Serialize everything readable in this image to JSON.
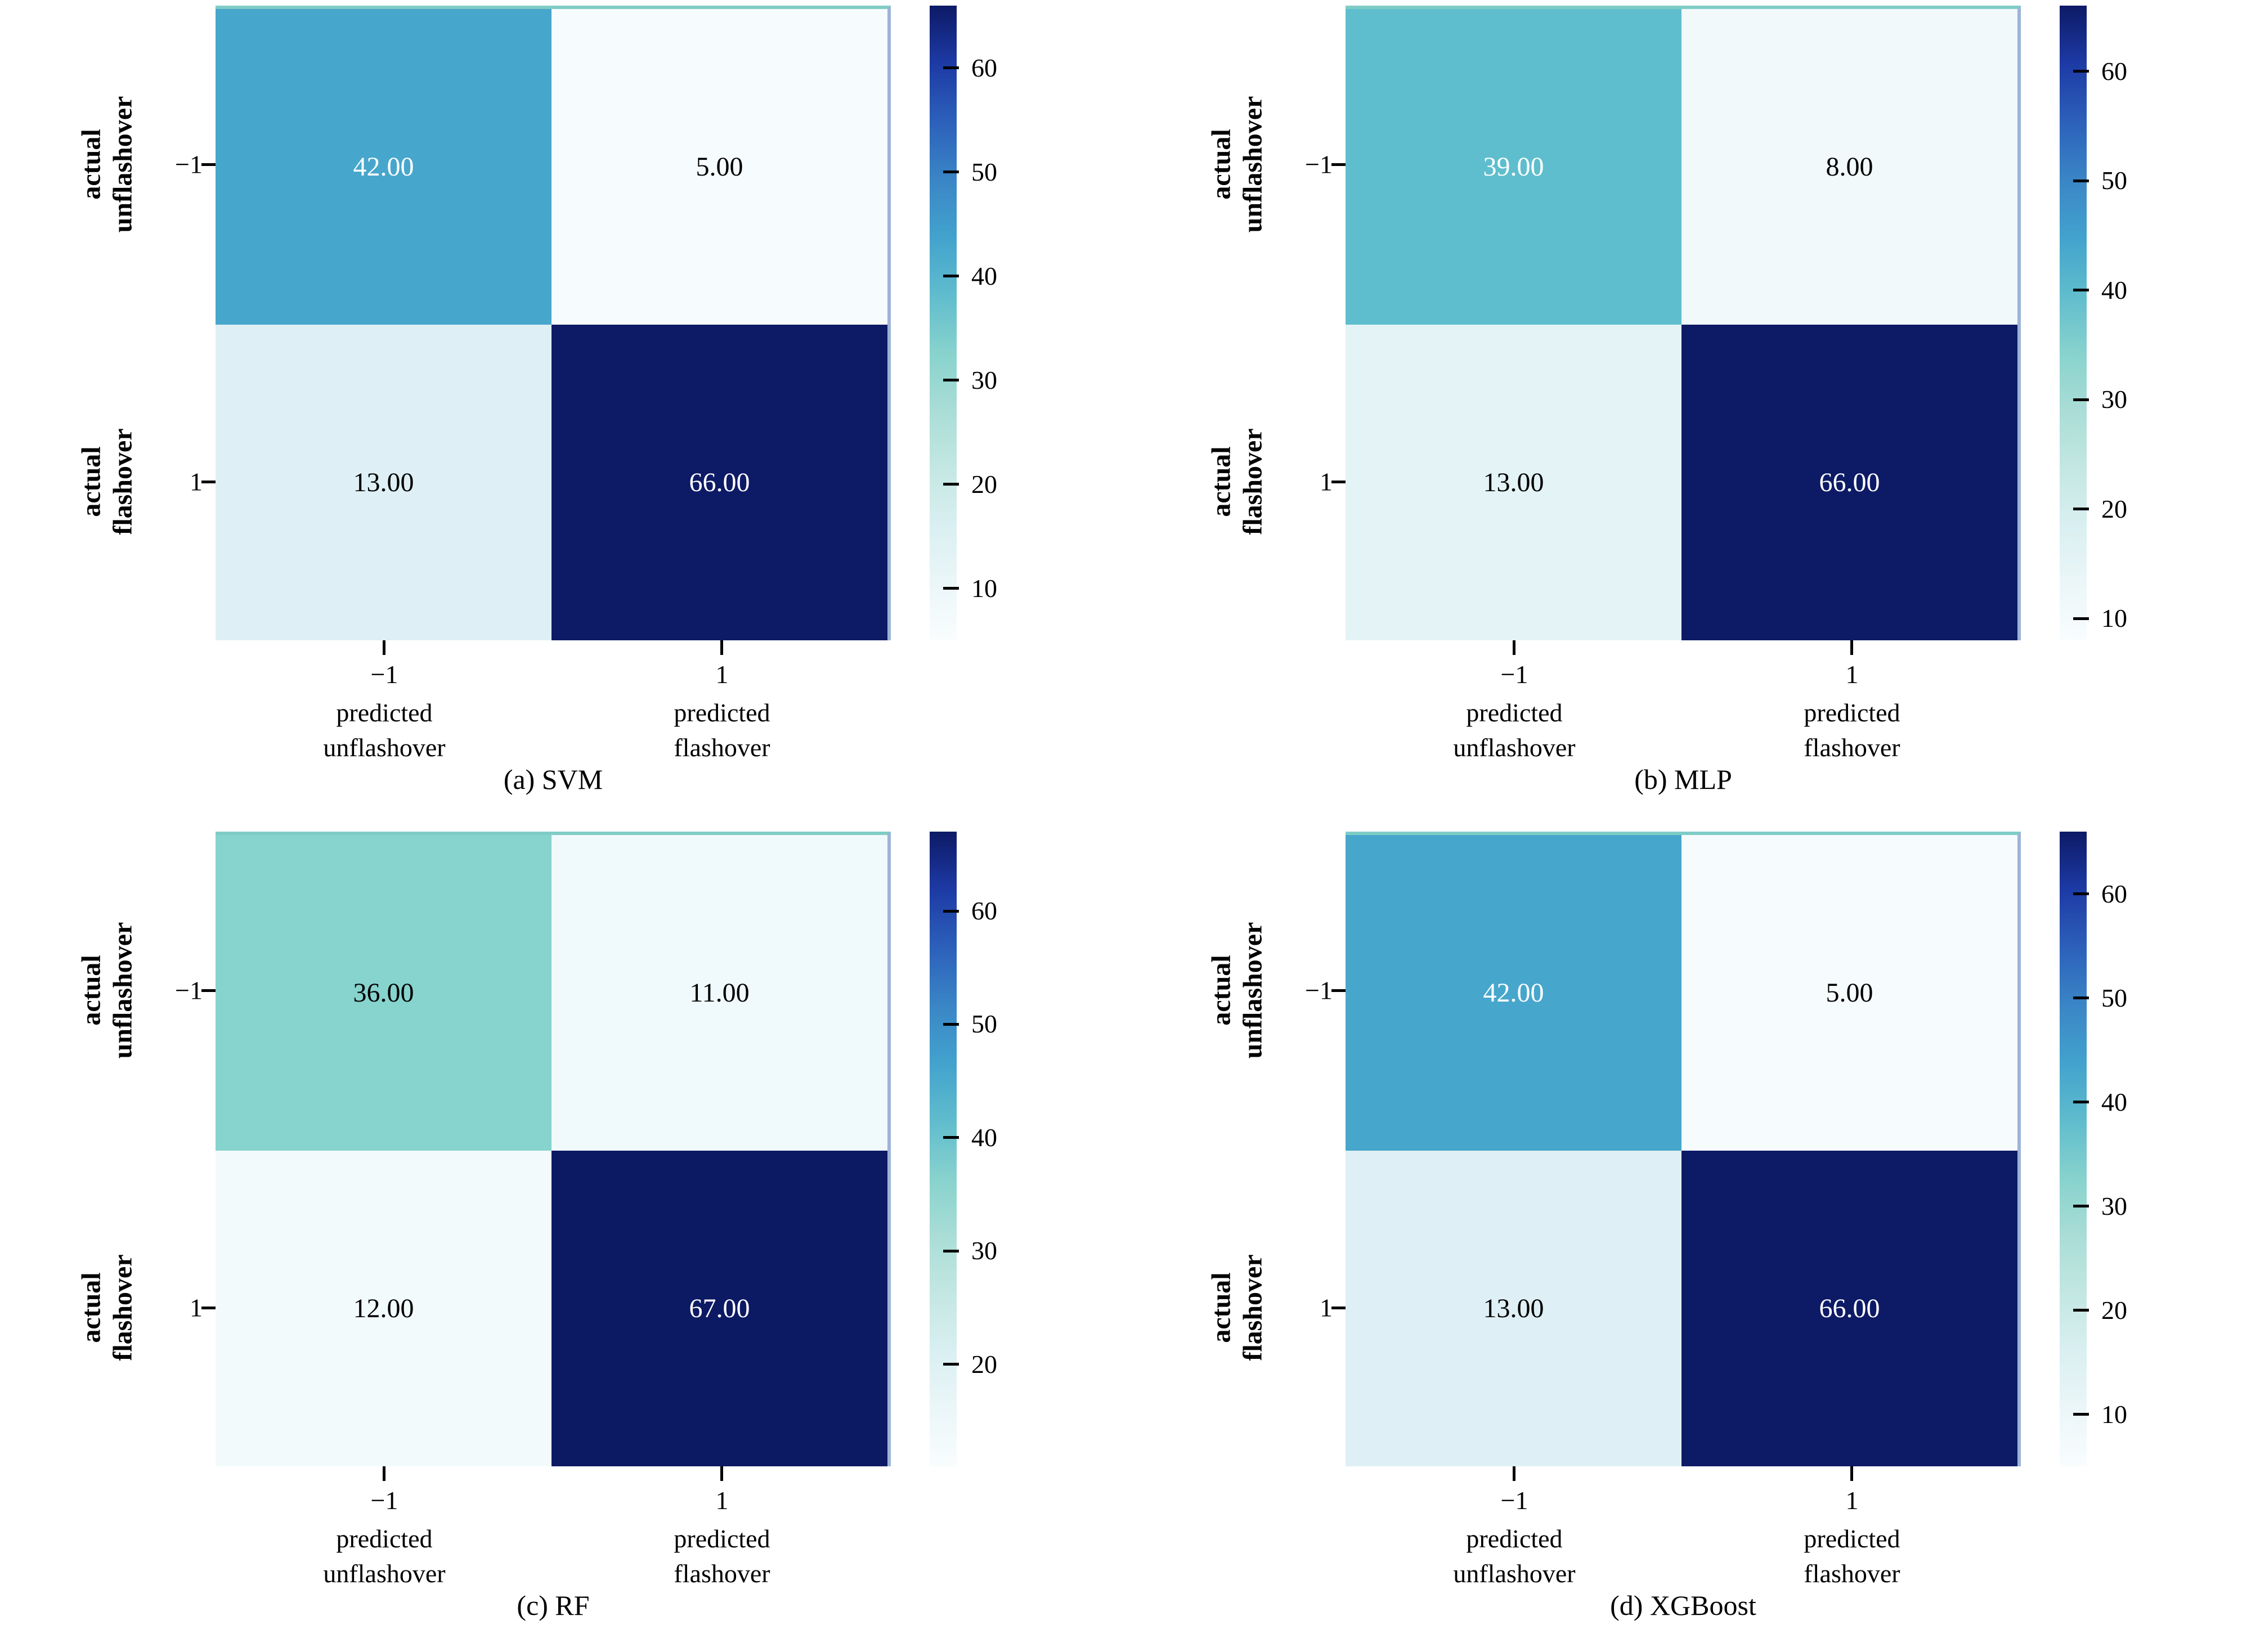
{
  "figure": {
    "background": "#ffffff",
    "text_color": "#000000",
    "colormap_name": "white-teal-blue-navy sequential (YlGnBu-like)",
    "colorbar_gradient": [
      "#f9fdfe",
      "#ebf6f8",
      "#d9eff1",
      "#c3e7e2",
      "#a9ddd6",
      "#87d2cd",
      "#5fbccd",
      "#42a2cd",
      "#3a85c6",
      "#2c60ba",
      "#1d3aa5",
      "#0d1a66"
    ],
    "heatmap_top_edge_color": "#7fccc6",
    "heatmap_right_edge_color": "#9db4d6"
  },
  "chart_data": [
    {
      "type": "heatmap",
      "title": "(a) SVM",
      "model": "SVM",
      "x_categories": [
        "−1 predicted unflashover",
        "1 predicted flashover"
      ],
      "y_categories": [
        "−1 actual unflashover",
        "1 actual flashover"
      ],
      "values": [
        [
          42,
          5
        ],
        [
          13,
          66
        ]
      ],
      "vmin": 5,
      "vmax": 66,
      "colorbar_ticks": [
        10,
        20,
        30,
        40,
        50,
        60
      ],
      "legend_position": "right-colorbar",
      "grid": false
    },
    {
      "type": "heatmap",
      "title": "(b) MLP",
      "model": "MLP",
      "x_categories": [
        "−1 predicted unflashover",
        "1 predicted flashover"
      ],
      "y_categories": [
        "−1 actual unflashover",
        "1 actual flashover"
      ],
      "values": [
        [
          39,
          8
        ],
        [
          13,
          66
        ]
      ],
      "vmin": 8,
      "vmax": 66,
      "colorbar_ticks": [
        10,
        20,
        30,
        40,
        50,
        60
      ],
      "legend_position": "right-colorbar",
      "grid": false
    },
    {
      "type": "heatmap",
      "title": "(c) RF",
      "model": "RF",
      "x_categories": [
        "−1 predicted unflashover",
        "1 predicted flashover"
      ],
      "y_categories": [
        "−1 actual unflashover",
        "1 actual flashover"
      ],
      "values": [
        [
          36,
          11
        ],
        [
          12,
          67
        ]
      ],
      "vmin": 11,
      "vmax": 67,
      "colorbar_ticks": [
        20,
        30,
        40,
        50,
        60
      ],
      "legend_position": "right-colorbar",
      "grid": false
    },
    {
      "type": "heatmap",
      "title": "(d) XGBoost",
      "model": "XGBoost",
      "x_categories": [
        "−1 predicted unflashover",
        "1 predicted flashover"
      ],
      "y_categories": [
        "−1 actual unflashover",
        "1 actual flashover"
      ],
      "values": [
        [
          42,
          5
        ],
        [
          13,
          66
        ]
      ],
      "vmin": 5,
      "vmax": 66,
      "colorbar_ticks": [
        10,
        20,
        30,
        40,
        50,
        60
      ],
      "legend_position": "right-colorbar",
      "grid": false
    }
  ],
  "plots": [
    {
      "caption": "(a) SVM",
      "ylabels": [
        {
          "line1": "actual",
          "line2": "unflashover"
        },
        {
          "line1": "actual",
          "line2": "flashover"
        }
      ],
      "yticks": [
        "−1",
        "1"
      ],
      "xticks": [
        {
          "value": "−1",
          "line1": "predicted",
          "line2": "unflashover"
        },
        {
          "value": "1",
          "line1": "predicted",
          "line2": "flashover"
        }
      ],
      "cells": [
        {
          "label": "42.00",
          "bg": "#47a6cc",
          "fg": "#ffffff"
        },
        {
          "label": "5.00",
          "bg": "#f6fbfd",
          "fg": "#000000"
        },
        {
          "label": "13.00",
          "bg": "#def0f5",
          "fg": "#000000"
        },
        {
          "label": "66.00",
          "bg": "#0d1a66",
          "fg": "#ffffff"
        }
      ],
      "colorbar_ticks": [
        {
          "label": "60",
          "top": "9.84%"
        },
        {
          "label": "50",
          "top": "26.23%"
        },
        {
          "label": "40",
          "top": "42.62%"
        },
        {
          "label": "30",
          "top": "59.02%"
        },
        {
          "label": "20",
          "top": "75.41%"
        },
        {
          "label": "10",
          "top": "91.80%"
        }
      ]
    },
    {
      "caption": "(b) MLP",
      "ylabels": [
        {
          "line1": "actual",
          "line2": "unflashover"
        },
        {
          "line1": "actual",
          "line2": "flashover"
        }
      ],
      "yticks": [
        "−1",
        "1"
      ],
      "xticks": [
        {
          "value": "−1",
          "line1": "predicted",
          "line2": "unflashover"
        },
        {
          "value": "1",
          "line1": "predicted",
          "line2": "flashover"
        }
      ],
      "cells": [
        {
          "label": "39.00",
          "bg": "#5fbecd",
          "fg": "#ffffff"
        },
        {
          "label": "8.00",
          "bg": "#f1f9fb",
          "fg": "#000000"
        },
        {
          "label": "13.00",
          "bg": "#e3f3f6",
          "fg": "#000000"
        },
        {
          "label": "66.00",
          "bg": "#0d1a66",
          "fg": "#ffffff"
        }
      ],
      "colorbar_ticks": [
        {
          "label": "60",
          "top": "10.34%"
        },
        {
          "label": "50",
          "top": "27.59%"
        },
        {
          "label": "40",
          "top": "44.83%"
        },
        {
          "label": "30",
          "top": "62.07%"
        },
        {
          "label": "20",
          "top": "79.31%"
        },
        {
          "label": "10",
          "top": "96.55%"
        }
      ]
    },
    {
      "caption": "(c) RF",
      "ylabels": [
        {
          "line1": "actual",
          "line2": "unflashover"
        },
        {
          "line1": "actual",
          "line2": "flashover"
        }
      ],
      "yticks": [
        "−1",
        "1"
      ],
      "xticks": [
        {
          "value": "−1",
          "line1": "predicted",
          "line2": "unflashover"
        },
        {
          "value": "1",
          "line1": "predicted",
          "line2": "flashover"
        }
      ],
      "cells": [
        {
          "label": "36.00",
          "bg": "#87d3cd",
          "fg": "#000000"
        },
        {
          "label": "11.00",
          "bg": "#f0f9fb",
          "fg": "#000000"
        },
        {
          "label": "12.00",
          "bg": "#f3fafc",
          "fg": "#000000"
        },
        {
          "label": "67.00",
          "bg": "#0c1963",
          "fg": "#ffffff"
        }
      ],
      "colorbar_ticks": [
        {
          "label": "60",
          "top": "12.50%"
        },
        {
          "label": "50",
          "top": "30.36%"
        },
        {
          "label": "40",
          "top": "48.21%"
        },
        {
          "label": "30",
          "top": "66.07%"
        },
        {
          "label": "20",
          "top": "83.93%"
        }
      ]
    },
    {
      "caption": "(d) XGBoost",
      "ylabels": [
        {
          "line1": "actual",
          "line2": "unflashover"
        },
        {
          "line1": "actual",
          "line2": "flashover"
        }
      ],
      "yticks": [
        "−1",
        "1"
      ],
      "xticks": [
        {
          "value": "−1",
          "line1": "predicted",
          "line2": "unflashover"
        },
        {
          "value": "1",
          "line1": "predicted",
          "line2": "flashover"
        }
      ],
      "cells": [
        {
          "label": "42.00",
          "bg": "#47a6cc",
          "fg": "#ffffff"
        },
        {
          "label": "5.00",
          "bg": "#f6fbfd",
          "fg": "#000000"
        },
        {
          "label": "13.00",
          "bg": "#def0f5",
          "fg": "#000000"
        },
        {
          "label": "66.00",
          "bg": "#0d1a66",
          "fg": "#ffffff"
        }
      ],
      "colorbar_ticks": [
        {
          "label": "60",
          "top": "9.84%"
        },
        {
          "label": "50",
          "top": "26.23%"
        },
        {
          "label": "40",
          "top": "42.62%"
        },
        {
          "label": "30",
          "top": "59.02%"
        },
        {
          "label": "20",
          "top": "75.41%"
        },
        {
          "label": "10",
          "top": "91.80%"
        }
      ]
    }
  ]
}
